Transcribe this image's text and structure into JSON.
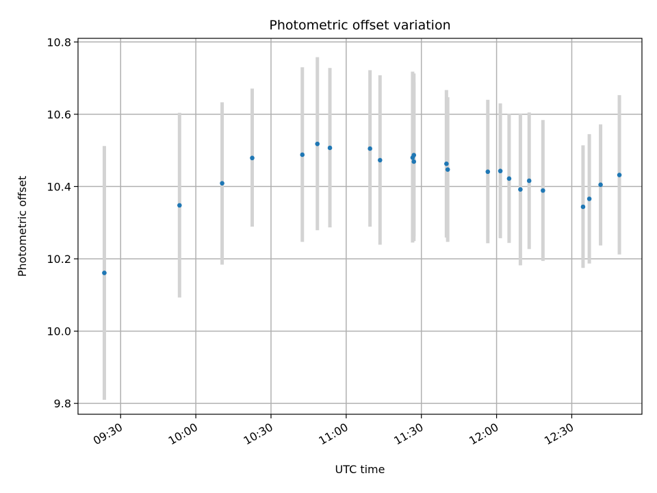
{
  "chart_data": {
    "type": "scatter",
    "title": "Photometric offset variation",
    "xlabel": "UTC time",
    "ylabel": "Photometric offset",
    "grid": true,
    "xlim": [
      "09:13",
      "12:58"
    ],
    "ylim": [
      9.77,
      10.81
    ],
    "x_ticks": [
      "09:30",
      "10:00",
      "10:30",
      "11:00",
      "11:30",
      "12:00",
      "12:30"
    ],
    "y_ticks": [
      "9.8",
      "10.0",
      "10.2",
      "10.4",
      "10.6",
      "10.8"
    ],
    "colors": {
      "points": "#1f77b4",
      "errorbars": "#d3d3d3",
      "grid": "#b0b0b0"
    },
    "series": [
      {
        "points": [
          {
            "x": "09:23:30",
            "y": 10.161,
            "ylo": 9.81,
            "yhi": 10.512
          },
          {
            "x": "09:53:30",
            "y": 10.348,
            "ylo": 10.093,
            "yhi": 10.604
          },
          {
            "x": "10:10:30",
            "y": 10.409,
            "ylo": 10.184,
            "yhi": 10.633
          },
          {
            "x": "10:22:30",
            "y": 10.479,
            "ylo": 10.289,
            "yhi": 10.671
          },
          {
            "x": "10:42:30",
            "y": 10.488,
            "ylo": 10.247,
            "yhi": 10.73
          },
          {
            "x": "10:48:30",
            "y": 10.518,
            "ylo": 10.279,
            "yhi": 10.758
          },
          {
            "x": "10:53:30",
            "y": 10.507,
            "ylo": 10.287,
            "yhi": 10.728
          },
          {
            "x": "11:09:30",
            "y": 10.505,
            "ylo": 10.289,
            "yhi": 10.722
          },
          {
            "x": "11:13:30",
            "y": 10.473,
            "ylo": 10.239,
            "yhi": 10.708
          },
          {
            "x": "11:26:30",
            "y": 10.48,
            "ylo": 10.245,
            "yhi": 10.718
          },
          {
            "x": "11:27:00",
            "y": 10.487,
            "ylo": 10.262,
            "yhi": 10.713
          },
          {
            "x": "11:27:00",
            "y": 10.469,
            "ylo": 10.249,
            "yhi": 10.689
          },
          {
            "x": "11:40:00",
            "y": 10.463,
            "ylo": 10.259,
            "yhi": 10.667
          },
          {
            "x": "11:40:30",
            "y": 10.447,
            "ylo": 10.247,
            "yhi": 10.647
          },
          {
            "x": "11:56:30",
            "y": 10.441,
            "ylo": 10.243,
            "yhi": 10.64
          },
          {
            "x": "12:01:30",
            "y": 10.443,
            "ylo": 10.257,
            "yhi": 10.63
          },
          {
            "x": "12:05:00",
            "y": 10.422,
            "ylo": 10.244,
            "yhi": 10.601
          },
          {
            "x": "12:09:30",
            "y": 10.392,
            "ylo": 10.182,
            "yhi": 10.602
          },
          {
            "x": "12:13:00",
            "y": 10.416,
            "ylo": 10.227,
            "yhi": 10.605
          },
          {
            "x": "12:18:30",
            "y": 10.389,
            "ylo": 10.194,
            "yhi": 10.584
          },
          {
            "x": "12:34:30",
            "y": 10.344,
            "ylo": 10.175,
            "yhi": 10.514
          },
          {
            "x": "12:37:00",
            "y": 10.366,
            "ylo": 10.187,
            "yhi": 10.545
          },
          {
            "x": "12:41:30",
            "y": 10.405,
            "ylo": 10.237,
            "yhi": 10.572
          },
          {
            "x": "12:49:00",
            "y": 10.432,
            "ylo": 10.212,
            "yhi": 10.653
          }
        ]
      }
    ]
  }
}
